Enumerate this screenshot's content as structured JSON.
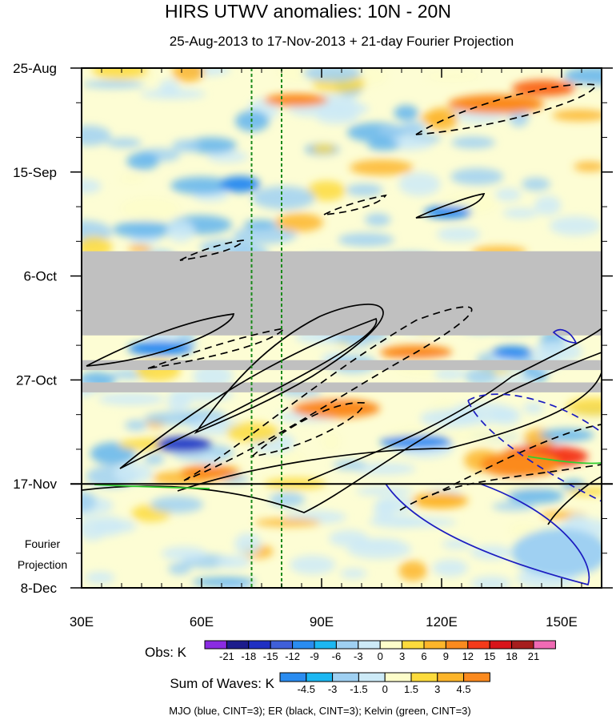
{
  "chart_data": {
    "type": "heatmap",
    "title": "HIRS UTWV anomalies: 10N - 20N",
    "subtitle": "25-Aug-2013 to 17-Nov-2013 + 21-day Fourier Projection",
    "x_ticks": [
      {
        "label": "30E",
        "value": 30
      },
      {
        "label": "60E",
        "value": 60
      },
      {
        "label": "90E",
        "value": 90
      },
      {
        "label": "120E",
        "value": 120
      },
      {
        "label": "150E",
        "value": 150
      }
    ],
    "xlim": [
      30,
      160
    ],
    "y_ticks": [
      {
        "label": "25-Aug",
        "value": 0
      },
      {
        "label": "15-Sep",
        "value": 21
      },
      {
        "label": "6-Oct",
        "value": 42
      },
      {
        "label": "27-Oct",
        "value": 63
      },
      {
        "label": "17-Nov",
        "value": 84
      },
      {
        "label": "8-Dec",
        "value": 105
      }
    ],
    "ylim_days": [
      0,
      105
    ],
    "projection_start_day": 84,
    "projection_label": [
      "Fourier",
      "Projection"
    ],
    "vertical_reference_lines_lon": [
      72.5,
      80
    ],
    "missing_data_day_ranges": [
      [
        37,
        54
      ],
      [
        59,
        61
      ],
      [
        63.5,
        65.5
      ]
    ],
    "obs_colorbar": {
      "label": "Obs: K",
      "ticks": [
        "-21",
        "-18",
        "-15",
        "-12",
        "-9",
        "-6",
        "-3",
        "0",
        "3",
        "6",
        "9",
        "12",
        "15",
        "18",
        "21"
      ],
      "colors": [
        "#8a2be2",
        "#1c1c8c",
        "#1f2fc2",
        "#3f5fd8",
        "#2a8cf0",
        "#1cb7f2",
        "#9fd0f2",
        "#cdeaf7",
        "#fdfdca",
        "#fddb3c",
        "#fdb52a",
        "#fb8a1e",
        "#f43a1a",
        "#d8141a",
        "#a61e1e",
        "#f06ab4"
      ]
    },
    "waves_colorbar": {
      "label": "Sum of Waves: K",
      "ticks": [
        "-4.5",
        "-3",
        "-1.5",
        "0",
        "1.5",
        "3",
        "4.5"
      ],
      "colors": [
        "#2a8cf0",
        "#1cb7f2",
        "#9fd0f2",
        "#cdeaf7",
        "#fdfdca",
        "#fddb3c",
        "#fdb52a",
        "#fb8a1e"
      ]
    },
    "footnote": "MJO (blue, CINT=3); ER (black, CINT=3); Kelvin (green, CINT=3)"
  }
}
